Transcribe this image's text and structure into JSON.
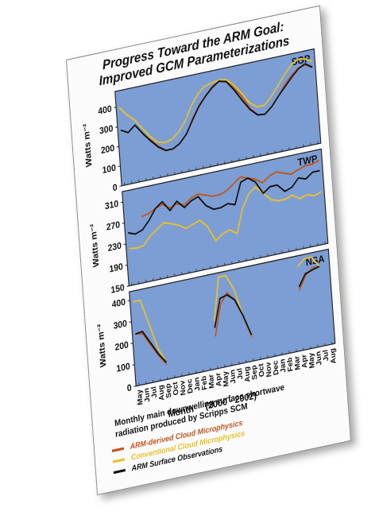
{
  "title_line1": "Progress Toward the ARM Goal:",
  "title_line2": "Improved GCM Parameterizations",
  "xlabel": "Month",
  "xlabel_range": "(2000 - 2002)",
  "caption_line1": "Monthly main downwelling surface shortwave",
  "caption_line2": "radiation produced by Scripps SCM",
  "legend": [
    {
      "label": "ARM-derived Cloud Microphysics",
      "color": "#c0561c"
    },
    {
      "label": "Conventional Cloud Microphysics",
      "color": "#e8c02c"
    },
    {
      "label": "ARM Surface Observations",
      "color": "#111111"
    }
  ],
  "colors": {
    "panel_bg": "#7d9ed4",
    "arm_derived": "#c0561c",
    "conventional": "#e8c02c",
    "observations": "#111111"
  },
  "month_labels": [
    "May",
    "Jun",
    "Jul",
    "Aug",
    "Sep",
    "Oct",
    "Nov",
    "Dec",
    "Jan",
    "Feb",
    "Mar",
    "Apr",
    "May",
    "Jun",
    "Jul",
    "Aug",
    "Sep",
    "Oct",
    "Nov",
    "Dec",
    "Jan",
    "Feb",
    "Mar",
    "Apr",
    "May",
    "Jun",
    "Jul",
    "Aug"
  ],
  "chart_data": [
    {
      "type": "line",
      "site": "SGP",
      "ylabel": "Watts m⁻²",
      "ylim": [
        0,
        480
      ],
      "yticks": [
        0,
        100,
        200,
        300,
        400
      ],
      "x": [
        0,
        1,
        2,
        3,
        4,
        5,
        6,
        7,
        8,
        9,
        10,
        11,
        12,
        13,
        14,
        15,
        16,
        17,
        18,
        19,
        20,
        21,
        22,
        23,
        24,
        25,
        26,
        27
      ],
      "series": [
        {
          "name": "ARM-derived Cloud Microphysics",
          "color": "#c0561c",
          "values": [
            null,
            null,
            null,
            235,
            200,
            160,
            130,
            130,
            150,
            190,
            260,
            320,
            360,
            400,
            420,
            415,
            370,
            320,
            250,
            210,
            205,
            235,
            280,
            330,
            370,
            400,
            410,
            390
          ]
        },
        {
          "name": "Conventional Cloud Microphysics",
          "color": "#e8c02c",
          "values": [
            395,
            350,
            315,
            265,
            215,
            180,
            170,
            180,
            210,
            260,
            330,
            380,
            410,
            420,
            425,
            420,
            385,
            335,
            280,
            250,
            250,
            285,
            330,
            380,
            420,
            445,
            440,
            420
          ]
        },
        {
          "name": "ARM Surface Observations",
          "color": "#111111",
          "values": [
            280,
            260,
            290,
            240,
            195,
            155,
            130,
            130,
            150,
            190,
            255,
            315,
            360,
            395,
            420,
            410,
            360,
            300,
            245,
            210,
            205,
            235,
            280,
            320,
            360,
            395,
            415,
            390
          ]
        }
      ]
    },
    {
      "type": "line",
      "site": "TWP",
      "ylabel": "Watts m⁻²",
      "ylim": [
        150,
        330
      ],
      "yticks": [
        150,
        190,
        230,
        270,
        310
      ],
      "x": [
        0,
        1,
        2,
        3,
        4,
        5,
        6,
        7,
        8,
        9,
        10,
        11,
        12,
        13,
        14,
        15,
        16,
        17,
        18,
        19,
        20,
        21,
        22,
        23,
        24,
        25,
        26,
        27
      ],
      "series": [
        {
          "name": "ARM-derived Cloud Microphysics",
          "color": "#c0561c",
          "values": [
            null,
            null,
            275,
            278,
            285,
            290,
            280,
            285,
            280,
            290,
            295,
            290,
            285,
            285,
            290,
            300,
            310,
            305,
            300,
            290,
            300,
            305,
            300,
            295,
            300,
            305,
            305,
            310
          ]
        },
        {
          "name": "Conventional Cloud Microphysics",
          "color": "#e8c02c",
          "values": [
            220,
            218,
            220,
            235,
            245,
            255,
            250,
            245,
            235,
            240,
            245,
            230,
            200,
            210,
            215,
            205,
            250,
            275,
            285,
            270,
            255,
            250,
            250,
            255,
            245,
            250,
            245,
            250
          ]
        },
        {
          "name": "ARM Surface Observations",
          "color": "#111111",
          "values": [
            250,
            245,
            250,
            265,
            285,
            295,
            275,
            290,
            275,
            285,
            290,
            270,
            260,
            260,
            265,
            260,
            300,
            305,
            295,
            270,
            280,
            280,
            265,
            270,
            285,
            280,
            290,
            290
          ]
        }
      ]
    },
    {
      "type": "line",
      "site": "NSA",
      "ylabel": "Watts m⁻²",
      "ylim": [
        0,
        440
      ],
      "yticks": [
        0,
        100,
        200,
        300,
        400
      ],
      "x": [
        0,
        1,
        2,
        3,
        4,
        5,
        6,
        7,
        8,
        9,
        10,
        11,
        12,
        13,
        14,
        15,
        16,
        17,
        18,
        19,
        20,
        21,
        22,
        23,
        24,
        25,
        26,
        27
      ],
      "series": [
        {
          "name": "ARM-derived Cloud Microphysics",
          "color": "#c0561c",
          "values": [
            240,
            235,
            175,
            120,
            70,
            null,
            null,
            null,
            null,
            null,
            null,
            150,
            290,
            340,
            300,
            220,
            110,
            null,
            null,
            null,
            null,
            null,
            null,
            280,
            340,
            370,
            370,
            null
          ]
        },
        {
          "name": "Conventional Cloud Microphysics",
          "color": "#e8c02c",
          "values": [
            390,
            390,
            270,
            150,
            80,
            null,
            null,
            null,
            null,
            null,
            null,
            220,
            420,
            420,
            350,
            220,
            115,
            null,
            null,
            null,
            null,
            null,
            null,
            390,
            420,
            420,
            370,
            null
          ]
        },
        {
          "name": "ARM Surface Observations",
          "color": "#111111",
          "values": [
            240,
            245,
            185,
            125,
            80,
            null,
            null,
            null,
            null,
            null,
            null,
            190,
            320,
            330,
            300,
            220,
            120,
            null,
            null,
            null,
            null,
            null,
            null,
            295,
            350,
            360,
            370,
            null
          ]
        }
      ]
    }
  ]
}
